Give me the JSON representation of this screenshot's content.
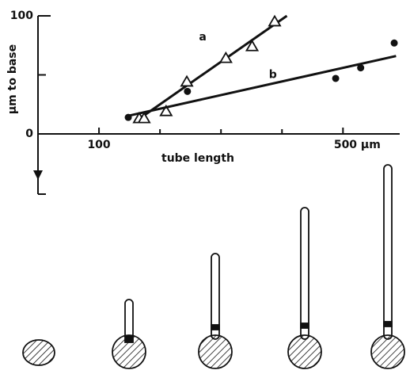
{
  "chart_data": {
    "type": "scatter",
    "ylabel": "µm to base",
    "xlabel": "tube length",
    "xlim": [
      0,
      593
    ],
    "ylim": [
      -51,
      100
    ],
    "xticks": [
      100,
      {
        "value": 500,
        "label": "500 µm"
      }
    ],
    "xminor_ticks": [
      200,
      300,
      400
    ],
    "yticks": [
      0,
      100
    ],
    "yminor_ticks": [
      50
    ],
    "series": [
      {
        "name": "a",
        "marker": "triangle-open",
        "color": "#111",
        "x": [
          166,
          174,
          210,
          244,
          308,
          351,
          388
        ],
        "values": [
          13,
          13,
          19,
          44,
          64,
          74,
          95
        ],
        "fit": {
          "x": [
            161,
            408
          ],
          "y": [
            11,
            100
          ]
        },
        "label_at": [
          270,
          82
        ]
      },
      {
        "name": "b",
        "marker": "circle-filled",
        "color": "#111",
        "x": [
          148,
          245,
          488,
          529,
          584
        ],
        "values": [
          14,
          36,
          47,
          56,
          77
        ],
        "fit": {
          "x": [
            145,
            587
          ],
          "y": [
            15,
            66
          ]
        },
        "label_at": [
          385,
          50
        ]
      }
    ]
  }
}
